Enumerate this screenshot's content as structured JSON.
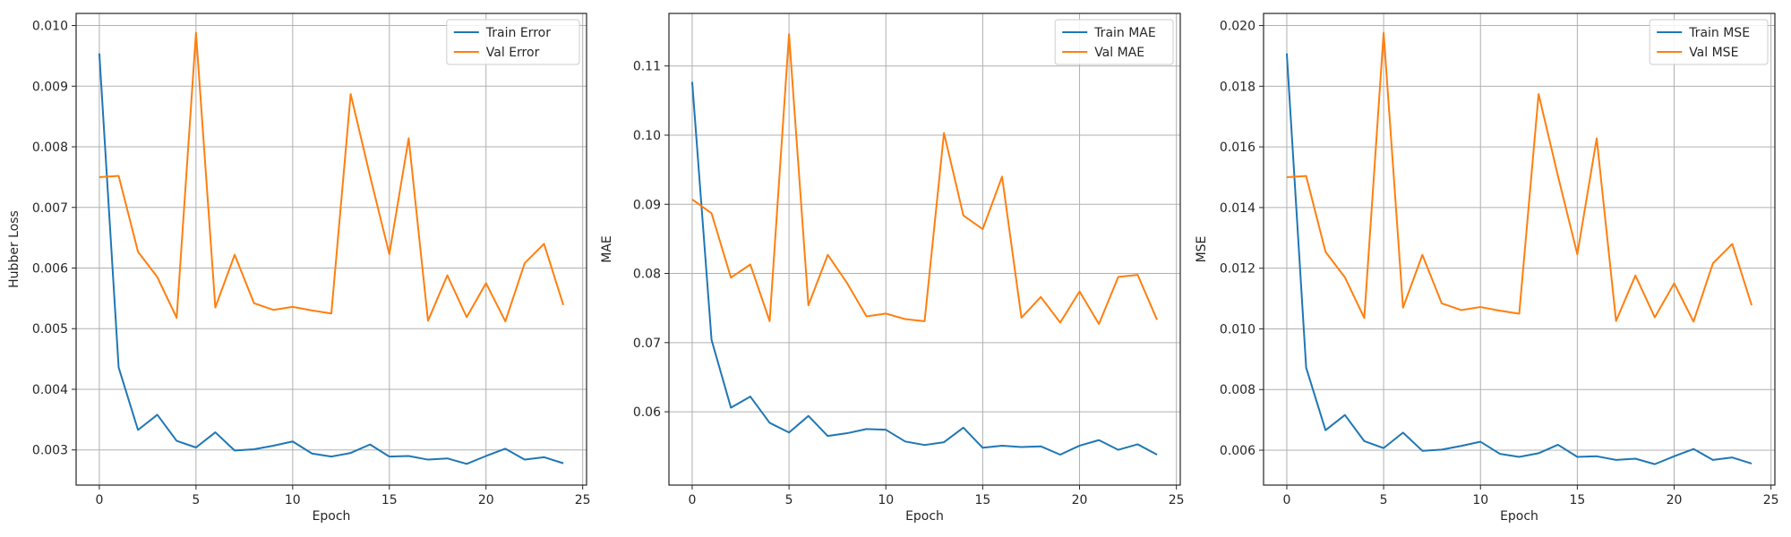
{
  "colors": {
    "train": "#1f77b4",
    "val": "#ff7f0e",
    "grid": "#b0b0b0",
    "axis": "#262626"
  },
  "chart_data": [
    {
      "type": "line",
      "xlabel": "Epoch",
      "ylabel": "Hubber Loss",
      "xlim": [
        -1.2,
        25.2
      ],
      "ylim": [
        0.00242,
        0.0102
      ],
      "xticks": [
        0,
        5,
        10,
        15,
        20,
        25
      ],
      "yticks": [
        0.003,
        0.004,
        0.005,
        0.006,
        0.007,
        0.008,
        0.009,
        0.01
      ],
      "ytick_labels": [
        "0.003",
        "0.004",
        "0.005",
        "0.006",
        "0.007",
        "0.008",
        "0.009",
        "0.010"
      ],
      "grid": true,
      "legend": "top-right",
      "x": [
        0,
        1,
        2,
        3,
        4,
        5,
        6,
        7,
        8,
        9,
        10,
        11,
        12,
        13,
        14,
        15,
        16,
        17,
        18,
        19,
        20,
        21,
        22,
        23,
        24
      ],
      "series": [
        {
          "name": "Train Error",
          "color_key": "train",
          "values": [
            0.00954,
            0.00436,
            0.00333,
            0.00358,
            0.00315,
            0.00304,
            0.00329,
            0.00299,
            0.00301,
            0.00307,
            0.00314,
            0.00294,
            0.00289,
            0.00295,
            0.00309,
            0.00289,
            0.0029,
            0.00284,
            0.00286,
            0.00277,
            0.0029,
            0.00302,
            0.00284,
            0.00288,
            0.00278
          ]
        },
        {
          "name": "Val Error",
          "color_key": "val",
          "values": [
            0.0075,
            0.00752,
            0.00627,
            0.00585,
            0.00518,
            0.00988,
            0.00535,
            0.00622,
            0.00542,
            0.00531,
            0.00536,
            0.0053,
            0.00525,
            0.00887,
            0.00752,
            0.00623,
            0.00814,
            0.00513,
            0.00588,
            0.00519,
            0.00575,
            0.00512,
            0.00608,
            0.0064,
            0.00539
          ]
        }
      ]
    },
    {
      "type": "line",
      "xlabel": "Epoch",
      "ylabel": "MAE",
      "xlim": [
        -1.2,
        25.2
      ],
      "ylim": [
        0.0494,
        0.1176
      ],
      "xticks": [
        0,
        5,
        10,
        15,
        20,
        25
      ],
      "yticks": [
        0.06,
        0.07,
        0.08,
        0.09,
        0.1,
        0.11
      ],
      "ytick_labels": [
        "0.06",
        "0.07",
        "0.08",
        "0.09",
        "0.10",
        "0.11"
      ],
      "grid": true,
      "legend": "top-right",
      "x": [
        0,
        1,
        2,
        3,
        4,
        5,
        6,
        7,
        8,
        9,
        10,
        11,
        12,
        13,
        14,
        15,
        16,
        17,
        18,
        19,
        20,
        21,
        22,
        23,
        24
      ],
      "series": [
        {
          "name": "Train MAE",
          "color_key": "train",
          "values": [
            0.1077,
            0.0704,
            0.0606,
            0.0622,
            0.0584,
            0.057,
            0.0594,
            0.0565,
            0.0569,
            0.0575,
            0.0574,
            0.0557,
            0.0552,
            0.0556,
            0.0577,
            0.0548,
            0.0551,
            0.0549,
            0.055,
            0.0538,
            0.0551,
            0.0559,
            0.0545,
            0.0553,
            0.0538
          ]
        },
        {
          "name": "Val MAE",
          "color_key": "val",
          "values": [
            0.0907,
            0.0887,
            0.0794,
            0.0813,
            0.0731,
            0.1146,
            0.0754,
            0.0827,
            0.0786,
            0.0738,
            0.0742,
            0.0734,
            0.0731,
            0.1003,
            0.0884,
            0.0864,
            0.094,
            0.0736,
            0.0766,
            0.0729,
            0.0774,
            0.0727,
            0.0795,
            0.0798,
            0.0733
          ]
        }
      ]
    },
    {
      "type": "line",
      "xlabel": "Epoch",
      "ylabel": "MSE",
      "xlim": [
        -1.2,
        25.2
      ],
      "ylim": [
        0.00485,
        0.0204
      ],
      "xticks": [
        0,
        5,
        10,
        15,
        20,
        25
      ],
      "yticks": [
        0.006,
        0.008,
        0.01,
        0.012,
        0.014,
        0.016,
        0.018,
        0.02
      ],
      "ytick_labels": [
        "0.006",
        "0.008",
        "0.010",
        "0.012",
        "0.014",
        "0.016",
        "0.018",
        "0.020"
      ],
      "grid": true,
      "legend": "top-right",
      "x": [
        0,
        1,
        2,
        3,
        4,
        5,
        6,
        7,
        8,
        9,
        10,
        11,
        12,
        13,
        14,
        15,
        16,
        17,
        18,
        19,
        20,
        21,
        22,
        23,
        24
      ],
      "series": [
        {
          "name": "Train MSE",
          "color_key": "train",
          "values": [
            0.01908,
            0.00872,
            0.00666,
            0.00716,
            0.0063,
            0.00607,
            0.00658,
            0.00598,
            0.00602,
            0.00614,
            0.00628,
            0.00588,
            0.00578,
            0.0059,
            0.00618,
            0.00578,
            0.0058,
            0.00568,
            0.00572,
            0.00554,
            0.0058,
            0.00604,
            0.00568,
            0.00576,
            0.00556
          ]
        },
        {
          "name": "Val MSE",
          "color_key": "val",
          "values": [
            0.015,
            0.01504,
            0.01254,
            0.0117,
            0.01036,
            0.01976,
            0.0107,
            0.01244,
            0.01084,
            0.01062,
            0.01072,
            0.0106,
            0.0105,
            0.01774,
            0.01504,
            0.01246,
            0.01628,
            0.01026,
            0.01176,
            0.01038,
            0.0115,
            0.01024,
            0.01216,
            0.0128,
            0.01078
          ]
        }
      ]
    }
  ]
}
